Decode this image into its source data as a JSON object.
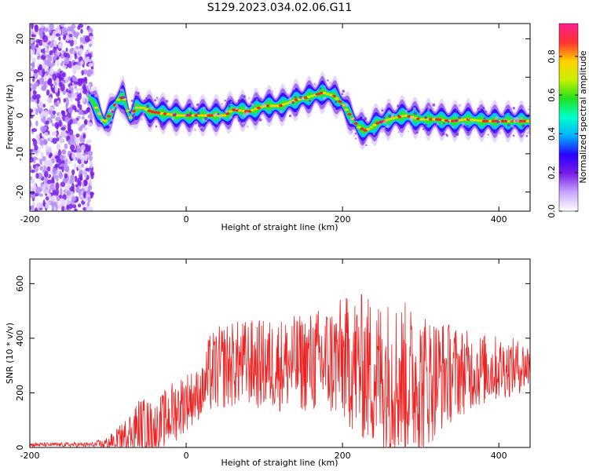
{
  "title": "S129.2023.034.02.06.G11",
  "colors": {
    "snr_line": "#ee2222",
    "noise_dots": "#7a1ee8",
    "track_core": "#ff2020",
    "frame": "#000000",
    "background": "#ffffff"
  },
  "chart_data": [
    {
      "type": "heatmap",
      "name": "spectrogram",
      "xlabel": "Height of straight line (km)",
      "ylabel": "Frequency (Hz)",
      "xlim": [
        -200,
        440
      ],
      "ylim": [
        -25,
        24
      ],
      "xticks": [
        -200,
        0,
        200,
        400
      ],
      "xtick_labels": [
        "-200",
        "0",
        "200",
        "400"
      ],
      "yticks": [
        -20,
        -10,
        0,
        10,
        20
      ],
      "ytick_labels": [
        "-20",
        "-10",
        "0",
        "10",
        "20"
      ],
      "colorbar": {
        "label": "Normalized spectral amplitude",
        "range": [
          0.0,
          0.97
        ],
        "ticks": [
          0.0,
          0.2,
          0.4,
          0.6,
          0.8
        ],
        "tick_labels": [
          "0.0",
          "0.2",
          "0.4",
          "0.6",
          "0.8"
        ],
        "colormap": [
          "#ffffff",
          "#c9a6ff",
          "#7a1ee8",
          "#2a00ff",
          "#00b0ff",
          "#00ffcc",
          "#20e020",
          "#c8f000",
          "#ffd000",
          "#ff3030",
          "#ff2090"
        ]
      },
      "noise_region_x": [
        -200,
        -120
      ],
      "frequency_track": {
        "x": [
          -125,
          -115,
          -105,
          -95,
          -88,
          -80,
          -72,
          -65,
          -55,
          -45,
          -30,
          -10,
          20,
          50,
          60,
          80,
          100,
          120,
          140,
          160,
          175,
          190,
          200,
          210,
          220,
          230,
          245,
          260,
          280,
          300,
          320,
          340,
          360,
          380,
          400,
          420,
          440
        ],
        "y": [
          5,
          2,
          -2,
          1,
          4,
          5,
          -1,
          2,
          2,
          1,
          0.5,
          0,
          0,
          0,
          1.5,
          1,
          2.5,
          2.5,
          4,
          5,
          6,
          5,
          3,
          0,
          -3,
          -4,
          -2,
          -1,
          0,
          -1,
          -1,
          -1.5,
          -1,
          -1.5,
          -1.5,
          -1.5,
          -1.5
        ]
      }
    },
    {
      "type": "line",
      "name": "snr",
      "xlabel": "Height of straight line (km)",
      "ylabel": "SNR (10 * v/v)",
      "xlim": [
        -200,
        440
      ],
      "ylim": [
        0,
        690
      ],
      "xticks": [
        -200,
        0,
        200,
        400
      ],
      "xtick_labels": [
        "-200",
        "0",
        "200",
        "400"
      ],
      "yticks": [
        0,
        200,
        400,
        600
      ],
      "ytick_labels": [
        "0",
        "200",
        "400",
        "600"
      ],
      "envelope": {
        "x": [
          -200,
          -150,
          -120,
          -100,
          -80,
          -60,
          -40,
          -20,
          0,
          20,
          30,
          50,
          80,
          100,
          150,
          200,
          220,
          250,
          270,
          300,
          330,
          360,
          400,
          440
        ],
        "base": [
          10,
          10,
          10,
          15,
          40,
          80,
          70,
          120,
          170,
          200,
          270,
          300,
          310,
          300,
          310,
          320,
          300,
          260,
          250,
          240,
          270,
          280,
          290,
          300
        ],
        "amplitude": [
          8,
          8,
          10,
          25,
          55,
          110,
          95,
          120,
          110,
          90,
          150,
          160,
          160,
          170,
          180,
          230,
          270,
          290,
          300,
          270,
          200,
          150,
          120,
          90
        ]
      }
    }
  ]
}
